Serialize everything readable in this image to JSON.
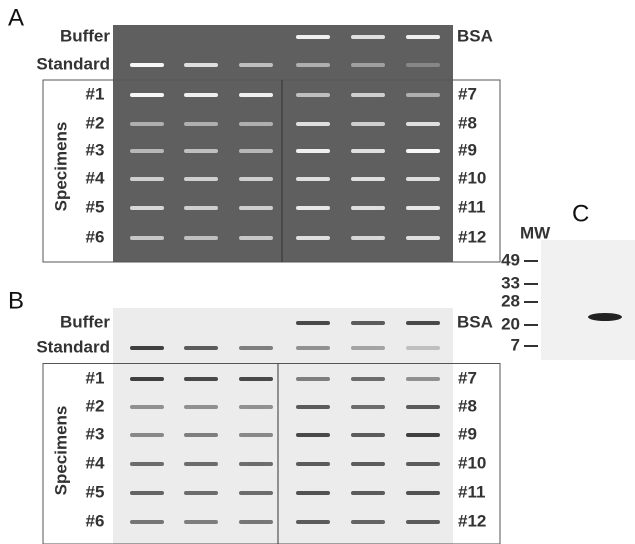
{
  "panel_a": {
    "label": "A",
    "buffer": "Buffer",
    "standard": "Standard",
    "bsa": "BSA",
    "specimens": "Specimens",
    "left_ids": [
      "#1",
      "#2",
      "#3",
      "#4",
      "#5",
      "#6"
    ],
    "right_ids": [
      "#7",
      "#8",
      "#9",
      "#10",
      "#11",
      "#12"
    ]
  },
  "panel_b": {
    "label": "B",
    "buffer": "Buffer",
    "standard": "Standard",
    "bsa": "BSA",
    "specimens": "Specimens",
    "left_ids": [
      "#1",
      "#2",
      "#3",
      "#4",
      "#5",
      "#6"
    ],
    "right_ids": [
      "#7",
      "#8",
      "#9",
      "#10",
      "#11",
      "#12"
    ]
  },
  "panel_c": {
    "label": "C",
    "mw": "MW",
    "markers": [
      49,
      33,
      28,
      20,
      7
    ]
  }
}
